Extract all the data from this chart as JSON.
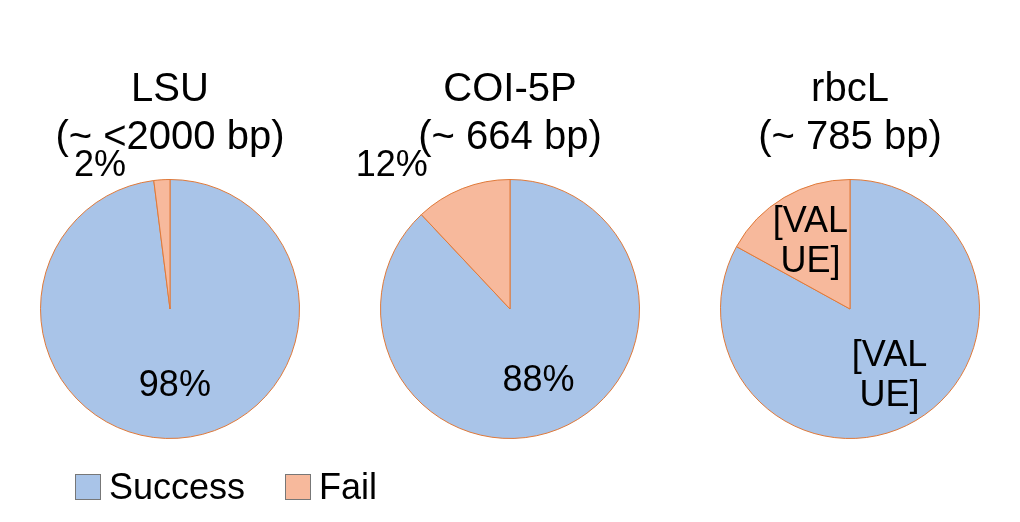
{
  "chart_data": [
    {
      "type": "pie",
      "title": "LSU",
      "subtitle": "(~ <2000 bp)",
      "categories": [
        "Success",
        "Fail"
      ],
      "values": [
        98,
        2
      ],
      "colors": [
        "#a9c4e8",
        "#f7b99c"
      ],
      "value_labels": [
        "98%",
        "2%"
      ],
      "legend": "bottom"
    },
    {
      "type": "pie",
      "title": "COI-5P",
      "subtitle": "(~ 664 bp)",
      "values": [
        88,
        12
      ],
      "colors": [
        "#a9c4e8",
        "#f7b99c"
      ],
      "value_labels": [
        "88%",
        "12%"
      ]
    },
    {
      "type": "pie",
      "title": "rbcL",
      "subtitle": "(~ 785 bp)",
      "values": [
        83,
        17
      ],
      "colors": [
        "#a9c4e8",
        "#f7b99c"
      ],
      "value_labels": [
        "[VALUE]",
        "[VALUE]"
      ]
    }
  ]
}
